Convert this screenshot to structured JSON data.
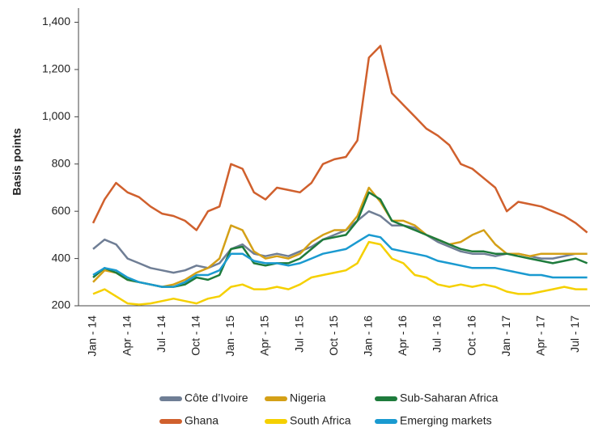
{
  "chart_data": {
    "type": "line",
    "y_label": "Basis points",
    "categories": [
      "Jan - 14",
      null,
      null,
      "Apr - 14",
      null,
      null,
      "Jul - 14",
      null,
      null,
      "Oct - 14",
      null,
      null,
      "Jan - 15",
      null,
      null,
      "Apr - 15",
      null,
      null,
      "Jul - 15",
      null,
      null,
      "Oct - 15",
      null,
      null,
      "Jan - 16",
      null,
      null,
      "Apr - 16",
      null,
      null,
      "Jul - 16",
      null,
      null,
      "Oct - 16",
      null,
      null,
      "Jan - 17",
      null,
      null,
      "Apr - 17",
      null,
      null,
      "Jul - 17",
      null
    ],
    "series": [
      {
        "name": "Côte d’Ivoire",
        "color": "#6f7e95",
        "values": [
          440,
          480,
          460,
          400,
          380,
          360,
          350,
          340,
          350,
          370,
          360,
          380,
          440,
          460,
          420,
          410,
          420,
          410,
          430,
          450,
          480,
          500,
          520,
          560,
          600,
          580,
          540,
          540,
          530,
          500,
          470,
          450,
          430,
          420,
          420,
          410,
          420,
          420,
          410,
          400,
          400,
          410,
          420,
          420
        ]
      },
      {
        "name": "Ghana",
        "color": "#d0602d",
        "values": [
          550,
          650,
          720,
          680,
          660,
          620,
          590,
          580,
          560,
          520,
          600,
          620,
          800,
          780,
          680,
          650,
          700,
          690,
          680,
          720,
          800,
          820,
          830,
          900,
          1250,
          1300,
          1100,
          1050,
          1000,
          950,
          920,
          880,
          800,
          780,
          740,
          700,
          600,
          640,
          630,
          620,
          600,
          580,
          550,
          510
        ]
      },
      {
        "name": "Nigeria",
        "color": "#d4a017",
        "values": [
          300,
          350,
          340,
          310,
          300,
          290,
          280,
          290,
          310,
          340,
          360,
          400,
          540,
          520,
          430,
          400,
          410,
          400,
          420,
          470,
          500,
          520,
          520,
          580,
          700,
          640,
          560,
          560,
          540,
          500,
          480,
          460,
          470,
          500,
          520,
          460,
          420,
          420,
          410,
          420,
          420,
          420,
          420,
          420
        ]
      },
      {
        "name": "South Africa",
        "color": "#f5d000",
        "values": [
          250,
          270,
          240,
          210,
          205,
          210,
          220,
          230,
          220,
          210,
          230,
          240,
          280,
          290,
          270,
          270,
          280,
          270,
          290,
          320,
          330,
          340,
          350,
          380,
          470,
          460,
          400,
          380,
          330,
          320,
          290,
          280,
          290,
          280,
          290,
          280,
          260,
          250,
          250,
          260,
          270,
          280,
          270,
          270
        ]
      },
      {
        "name": "Sub-Saharan Africa",
        "color": "#1e7b3c",
        "values": [
          320,
          360,
          340,
          310,
          300,
          290,
          280,
          280,
          290,
          320,
          310,
          330,
          440,
          450,
          380,
          370,
          380,
          380,
          400,
          440,
          480,
          490,
          500,
          560,
          680,
          650,
          560,
          540,
          520,
          500,
          480,
          460,
          440,
          430,
          430,
          420,
          420,
          410,
          400,
          390,
          380,
          390,
          400,
          380
        ]
      },
      {
        "name": "Emerging markets",
        "color": "#1a9ad0",
        "values": [
          330,
          360,
          350,
          320,
          300,
          290,
          280,
          280,
          300,
          330,
          330,
          350,
          420,
          420,
          390,
          380,
          380,
          370,
          380,
          400,
          420,
          430,
          440,
          470,
          500,
          490,
          440,
          430,
          420,
          410,
          390,
          380,
          370,
          360,
          360,
          360,
          350,
          340,
          330,
          330,
          320,
          320,
          320,
          320
        ]
      }
    ],
    "ylim": [
      200,
      1460
    ],
    "yticks": [
      200,
      400,
      600,
      800,
      {
        "value": 1000,
        "label": "1,000"
      },
      {
        "value": 1200,
        "label": "1,200"
      },
      {
        "value": 1400,
        "label": "1,400"
      }
    ]
  }
}
